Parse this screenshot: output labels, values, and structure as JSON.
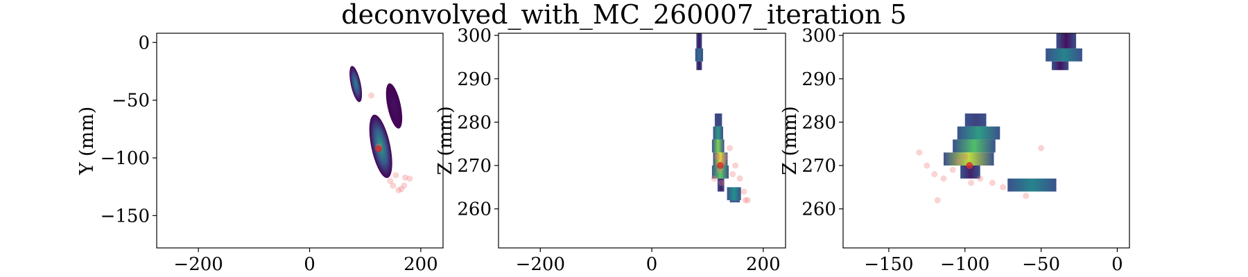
{
  "figure": {
    "title": "deconvolved_with_MC_260007_iteration 5"
  },
  "colors": {
    "viridis": [
      "#440154",
      "#3b528b",
      "#21908d",
      "#5dc963",
      "#fde725"
    ],
    "marker": "#f08080",
    "marker_dark": "#d32f2f"
  },
  "chart_data": [
    {
      "type": "heatmap",
      "title": "",
      "xlabel": "",
      "ylabel": "Y (mm)",
      "xlim": [
        -275,
        240
      ],
      "ylim": [
        -178,
        8
      ],
      "xticks": [
        -200,
        0,
        200
      ],
      "yticks": [
        0,
        -50,
        -100,
        -150
      ],
      "ytick_labels": [
        "0",
        "−50",
        "−100",
        "−150"
      ],
      "xtick_labels": [
        "−200",
        "0",
        "200"
      ],
      "blobs": [
        {
          "cx": 83,
          "cy": -36,
          "rx": 9,
          "ry": 16,
          "peak": 0.45
        },
        {
          "cx": 152,
          "cy": -55,
          "rx": 12,
          "ry": 20,
          "peak": 0.05
        },
        {
          "cx": 128,
          "cy": -90,
          "rx": 17,
          "ry": 28,
          "peak": 0.55
        }
      ],
      "points": [
        {
          "x": 111,
          "y": -46
        },
        {
          "x": 124,
          "y": -90
        },
        {
          "x": 172,
          "y": -117
        },
        {
          "x": 180,
          "y": -118
        },
        {
          "x": 170,
          "y": -124
        },
        {
          "x": 160,
          "y": -128
        },
        {
          "x": 150,
          "y": -124
        },
        {
          "x": 145,
          "y": -120
        },
        {
          "x": 155,
          "y": -115
        },
        {
          "x": 165,
          "y": -127
        }
      ],
      "hot_point": {
        "x": 124,
        "y": -92
      }
    },
    {
      "type": "heatmap",
      "title": "",
      "xlabel": "",
      "ylabel": "Z (mm)",
      "xlim": [
        -275,
        240
      ],
      "ylim": [
        251,
        300.5
      ],
      "xticks": [
        -200,
        0,
        200
      ],
      "yticks": [
        260,
        270,
        280,
        290,
        300
      ],
      "ytick_labels": [
        "260",
        "270",
        "280",
        "290",
        "300"
      ],
      "xtick_labels": [
        "−200",
        "0",
        "200"
      ],
      "rects": [
        {
          "x0": 80,
          "x1": 90,
          "y0": 297,
          "y1": 300.5,
          "v": 0.05
        },
        {
          "x0": 78,
          "x1": 92,
          "y0": 294,
          "y1": 297,
          "v": 0.35
        },
        {
          "x0": 80,
          "x1": 90,
          "y0": 292,
          "y1": 294,
          "v": 0.05
        },
        {
          "x0": 113,
          "x1": 126,
          "y0": 279,
          "y1": 282,
          "v": 0.2
        },
        {
          "x0": 110,
          "x1": 128,
          "y0": 276,
          "y1": 279,
          "v": 0.55
        },
        {
          "x0": 108,
          "x1": 130,
          "y0": 273,
          "y1": 276,
          "v": 0.8
        },
        {
          "x0": 110,
          "x1": 136,
          "y0": 270,
          "y1": 273,
          "v": 0.95
        },
        {
          "x0": 108,
          "x1": 138,
          "y0": 267,
          "y1": 270,
          "v": 0.75
        },
        {
          "x0": 118,
          "x1": 130,
          "y0": 264,
          "y1": 267,
          "v": 0.1
        },
        {
          "x0": 135,
          "x1": 160,
          "y0": 262,
          "y1": 265,
          "v": 0.5
        },
        {
          "x0": 140,
          "x1": 158,
          "y0": 261.5,
          "y1": 262,
          "v": 0.3
        }
      ],
      "points": [
        {
          "x": 118,
          "y": 272
        },
        {
          "x": 122,
          "y": 269
        },
        {
          "x": 125,
          "y": 266
        },
        {
          "x": 128,
          "y": 271
        },
        {
          "x": 132,
          "y": 272
        },
        {
          "x": 140,
          "y": 274
        },
        {
          "x": 150,
          "y": 270
        },
        {
          "x": 158,
          "y": 267
        },
        {
          "x": 165,
          "y": 264
        },
        {
          "x": 168,
          "y": 262
        },
        {
          "x": 172,
          "y": 262
        },
        {
          "x": 145,
          "y": 268
        },
        {
          "x": 112,
          "y": 267
        }
      ],
      "hot_point": {
        "x": 123,
        "y": 270
      }
    },
    {
      "type": "heatmap",
      "title": "",
      "xlabel": "",
      "ylabel": "Z (mm)",
      "xlim": [
        -180,
        8
      ],
      "ylim": [
        251,
        300.5
      ],
      "xticks": [
        -150,
        -100,
        -50,
        0
      ],
      "yticks": [
        260,
        270,
        280,
        290,
        300
      ],
      "ytick_labels": [
        "260",
        "270",
        "280",
        "290",
        "300"
      ],
      "xtick_labels": [
        "−150",
        "−100",
        "−50",
        "0"
      ],
      "rects": [
        {
          "x0": -40,
          "x1": -27,
          "y0": 297,
          "y1": 300.5,
          "v": 0.05
        },
        {
          "x0": -47,
          "x1": -23,
          "y0": 294,
          "y1": 297,
          "v": 0.45
        },
        {
          "x0": -43,
          "x1": -32,
          "y0": 292,
          "y1": 294,
          "v": 0.05
        },
        {
          "x0": -100,
          "x1": -86,
          "y0": 279,
          "y1": 282,
          "v": 0.2
        },
        {
          "x0": -105,
          "x1": -77,
          "y0": 276,
          "y1": 279,
          "v": 0.55
        },
        {
          "x0": -108,
          "x1": -80,
          "y0": 273,
          "y1": 276,
          "v": 0.7
        },
        {
          "x0": -114,
          "x1": -81,
          "y0": 270,
          "y1": 273,
          "v": 0.9
        },
        {
          "x0": -103,
          "x1": -90,
          "y0": 267,
          "y1": 270,
          "v": 0.1
        },
        {
          "x0": -72,
          "x1": -40,
          "y0": 264,
          "y1": 267,
          "v": 0.45
        }
      ],
      "points": [
        {
          "x": -130,
          "y": 273
        },
        {
          "x": -125,
          "y": 270
        },
        {
          "x": -120,
          "y": 268
        },
        {
          "x": -114,
          "y": 267
        },
        {
          "x": -108,
          "y": 269
        },
        {
          "x": -104,
          "y": 271
        },
        {
          "x": -100,
          "y": 272
        },
        {
          "x": -96,
          "y": 266
        },
        {
          "x": -90,
          "y": 267
        },
        {
          "x": -82,
          "y": 266
        },
        {
          "x": -75,
          "y": 265
        },
        {
          "x": -60,
          "y": 263
        },
        {
          "x": -50,
          "y": 274
        },
        {
          "x": -118,
          "y": 262
        }
      ],
      "hot_point": {
        "x": -97,
        "y": 270
      }
    }
  ]
}
